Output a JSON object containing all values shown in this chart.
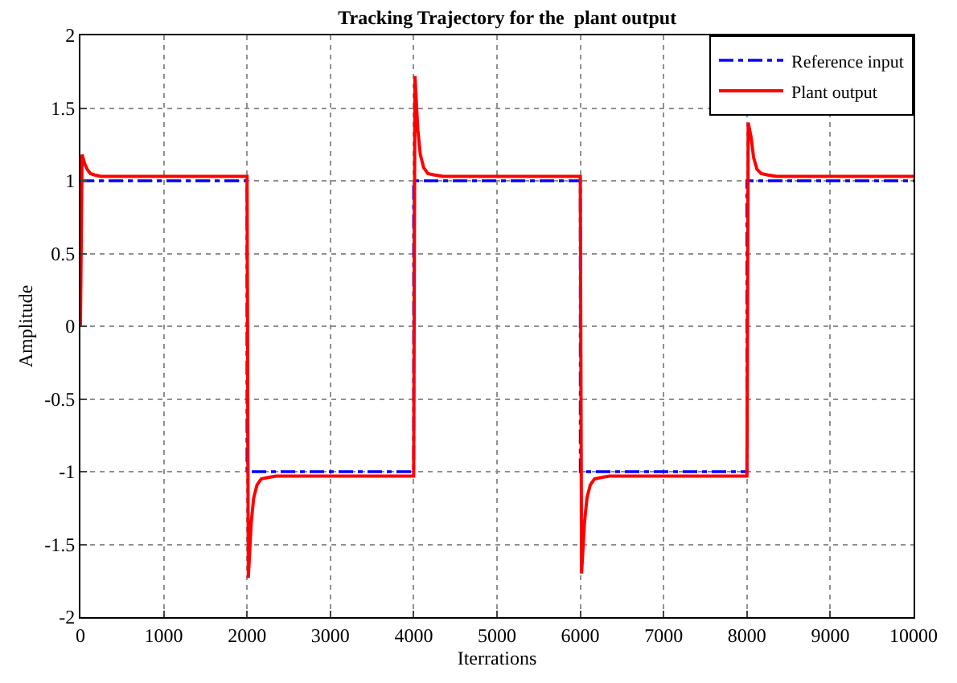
{
  "chart_data": {
    "type": "line",
    "title": "Tracking Trajectory for the  plant output",
    "xlabel": "Iterrations",
    "ylabel": "Amplitude",
    "xlim": [
      0,
      10000
    ],
    "ylim": [
      -2,
      2
    ],
    "xticks": [
      0,
      1000,
      2000,
      3000,
      4000,
      5000,
      6000,
      7000,
      8000,
      9000,
      10000
    ],
    "yticks": [
      -2,
      -1.5,
      -1,
      -0.5,
      0,
      0.5,
      1,
      1.5,
      2
    ],
    "grid": true,
    "legend": "top right",
    "marker": "none",
    "series": [
      {
        "name": "Reference input",
        "color": "#0000ff",
        "line_style": "dashed",
        "x": [
          0,
          0,
          2000,
          2000,
          4000,
          4000,
          6000,
          6000,
          8000,
          8000,
          10000
        ],
        "values": [
          0,
          1,
          1,
          -1,
          -1,
          1,
          1,
          -1,
          -1,
          1,
          1
        ]
      },
      {
        "name": "Plant output",
        "color": "#ff0000",
        "line_style": "solid",
        "x": [
          0,
          20,
          50,
          80,
          120,
          170,
          250,
          350,
          2000,
          2015,
          2050,
          2080,
          2120,
          2170,
          2250,
          2350,
          4000,
          4015,
          4050,
          4080,
          4120,
          4170,
          4250,
          4350,
          6000,
          6015,
          6050,
          6080,
          6120,
          6170,
          6250,
          6350,
          8000,
          8015,
          8050,
          8080,
          8120,
          8170,
          8250,
          8350,
          10000
        ],
        "values": [
          0,
          1.18,
          1.12,
          1.08,
          1.05,
          1.04,
          1.03,
          1.03,
          1.03,
          -1.73,
          -1.35,
          -1.18,
          -1.09,
          -1.05,
          -1.04,
          -1.03,
          -1.03,
          1.72,
          1.35,
          1.18,
          1.09,
          1.05,
          1.04,
          1.03,
          1.03,
          -1.7,
          -1.35,
          -1.18,
          -1.09,
          -1.05,
          -1.04,
          -1.03,
          -1.03,
          1.4,
          1.3,
          1.16,
          1.08,
          1.05,
          1.04,
          1.03,
          1.03
        ]
      }
    ]
  }
}
